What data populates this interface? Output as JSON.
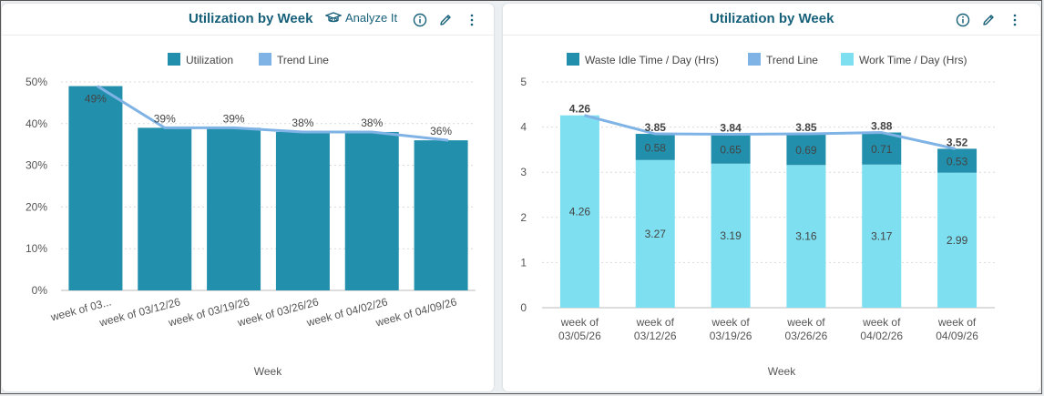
{
  "colors": {
    "utilization": "#2290ad",
    "trend": "#7fb3e6",
    "waste": "#2290ad",
    "work": "#7ddff0",
    "title": "#17607a"
  },
  "left": {
    "title": "Utilization by Week",
    "analyze_label": "Analyze It",
    "icons": [
      "info-icon",
      "edit-icon",
      "more-vertical-icon"
    ]
  },
  "right": {
    "title": "Utilization by Week",
    "icons": [
      "info-icon",
      "edit-icon",
      "more-vertical-icon"
    ]
  },
  "chart_data": [
    {
      "type": "bar",
      "title": "Utilization by Week",
      "xlabel": "Week",
      "ylabel": "",
      "ylim": [
        0,
        50
      ],
      "yticks": [
        "0%",
        "10%",
        "20%",
        "30%",
        "40%",
        "50%"
      ],
      "categories": [
        "week of 03...",
        "week of 03/12/26",
        "week of 03/19/26",
        "week of 03/26/26",
        "week of 04/02/26",
        "week of 04/09/26"
      ],
      "series": [
        {
          "name": "Utilization",
          "values": [
            49,
            39,
            39,
            38,
            38,
            36
          ],
          "labels": [
            "49%",
            "39%",
            "39%",
            "38%",
            "38%",
            "36%"
          ]
        },
        {
          "name": "Trend Line",
          "type": "line",
          "values": [
            49,
            39,
            39,
            38,
            38,
            36
          ]
        }
      ],
      "legend": [
        "Utilization",
        "Trend Line"
      ]
    },
    {
      "type": "bar",
      "stacked": true,
      "title": "Utilization by Week",
      "xlabel": "Week",
      "ylabel": "",
      "ylim": [
        0,
        5
      ],
      "yticks": [
        "0",
        "1",
        "2",
        "3",
        "4",
        "5"
      ],
      "categories": [
        [
          "week of",
          "03/05/26"
        ],
        [
          "week of",
          "03/12/26"
        ],
        [
          "week of",
          "03/19/26"
        ],
        [
          "week of",
          "03/26/26"
        ],
        [
          "week of",
          "04/02/26"
        ],
        [
          "week of",
          "04/09/26"
        ]
      ],
      "series": [
        {
          "name": "Work Time / Day (Hrs)",
          "values": [
            4.26,
            3.27,
            3.19,
            3.16,
            3.17,
            2.99
          ],
          "labels": [
            "4.26",
            "3.27",
            "3.19",
            "3.16",
            "3.17",
            "2.99"
          ]
        },
        {
          "name": "Waste Idle Time / Day (Hrs)",
          "values": [
            0,
            0.58,
            0.65,
            0.69,
            0.71,
            0.53
          ],
          "labels": [
            "",
            "0.58",
            "0.65",
            "0.69",
            "0.71",
            "0.53"
          ]
        },
        {
          "name": "Trend Line",
          "type": "line",
          "values": [
            4.26,
            3.85,
            3.84,
            3.85,
            3.88,
            3.52
          ]
        }
      ],
      "totals": [
        "4.26",
        "3.85",
        "3.84",
        "3.85",
        "3.88",
        "3.52"
      ],
      "legend": [
        "Waste Idle Time / Day (Hrs)",
        "Trend Line",
        "Work Time / Day (Hrs)"
      ]
    }
  ]
}
